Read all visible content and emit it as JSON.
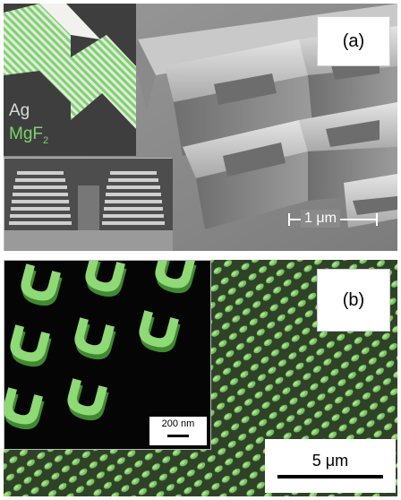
{
  "panel_a": {
    "label": "(a)",
    "legend_top": "Ag",
    "legend_bottom": "MgF",
    "legend_bottom_sub": "2",
    "scale_text": "1 μm",
    "colors": {
      "ag": "#d9dcd6",
      "mgf2": "#7ad66a",
      "sem_bg": "#8e8e8e"
    }
  },
  "panel_b": {
    "label": "(b)",
    "inset_scale_text": "200 nm",
    "scale_text": "5 μm",
    "colors": {
      "green": "#6fc45a",
      "dark": "#1a2414"
    }
  }
}
